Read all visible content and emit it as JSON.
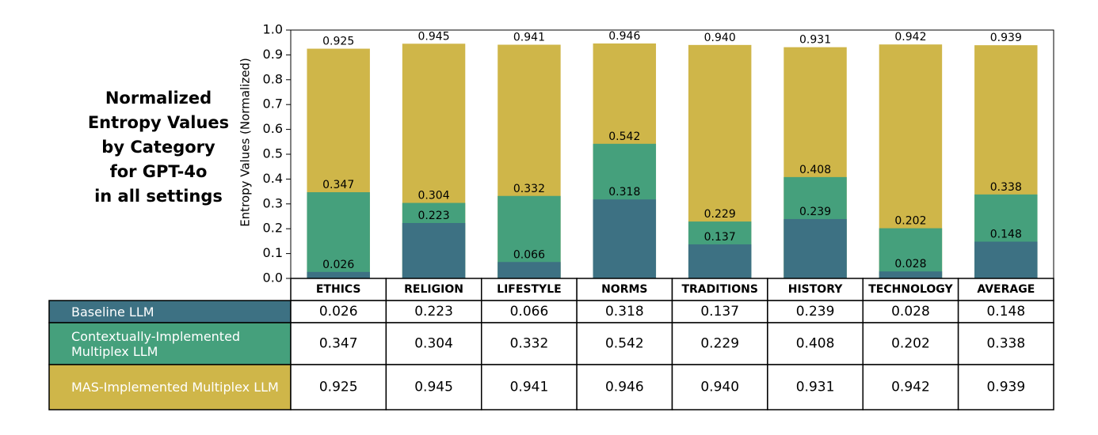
{
  "chart_data": {
    "type": "bar",
    "title": [
      "Normalized",
      "Entropy Values",
      "by Category",
      "for GPT-4o",
      "in all settings"
    ],
    "ylabel": "Entropy Values (Normalized)",
    "categories": [
      "ETHICS",
      "RELIGION",
      "LIFESTYLE",
      "NORMS",
      "TRADITIONS",
      "HISTORY",
      "TECHNOLOGY",
      "AVERAGE"
    ],
    "series": [
      {
        "name": "MAS-Implemented Multiplex LLM",
        "color": "#cfb649",
        "values": [
          0.925,
          0.945,
          0.941,
          0.946,
          0.94,
          0.931,
          0.942,
          0.939
        ],
        "value_labels": [
          "0.925",
          "0.945",
          "0.941",
          "0.946",
          "0.940",
          "0.931",
          "0.942",
          "0.939"
        ]
      },
      {
        "name": "Contextually-Implemented Multiplex LLM",
        "color": "#45a07c",
        "values": [
          0.347,
          0.304,
          0.332,
          0.542,
          0.229,
          0.408,
          0.202,
          0.338
        ],
        "value_labels": [
          "0.347",
          "0.304",
          "0.332",
          "0.542",
          "0.229",
          "0.408",
          "0.202",
          "0.338"
        ]
      },
      {
        "name": "Baseline LLM",
        "color": "#3d7183",
        "values": [
          0.026,
          0.223,
          0.066,
          0.318,
          0.137,
          0.239,
          0.028,
          0.148
        ],
        "value_labels": [
          "0.026",
          "0.223",
          "0.066",
          "0.318",
          "0.137",
          "0.239",
          "0.028",
          "0.148"
        ]
      }
    ],
    "ylim": [
      0,
      1
    ],
    "yticks": [
      {
        "value": 0,
        "label": "0.0"
      },
      0.1,
      0.2,
      0.3,
      0.4,
      0.5,
      0.6,
      0.7,
      0.8,
      0.9,
      {
        "value": 1,
        "label": "1.0"
      }
    ]
  }
}
